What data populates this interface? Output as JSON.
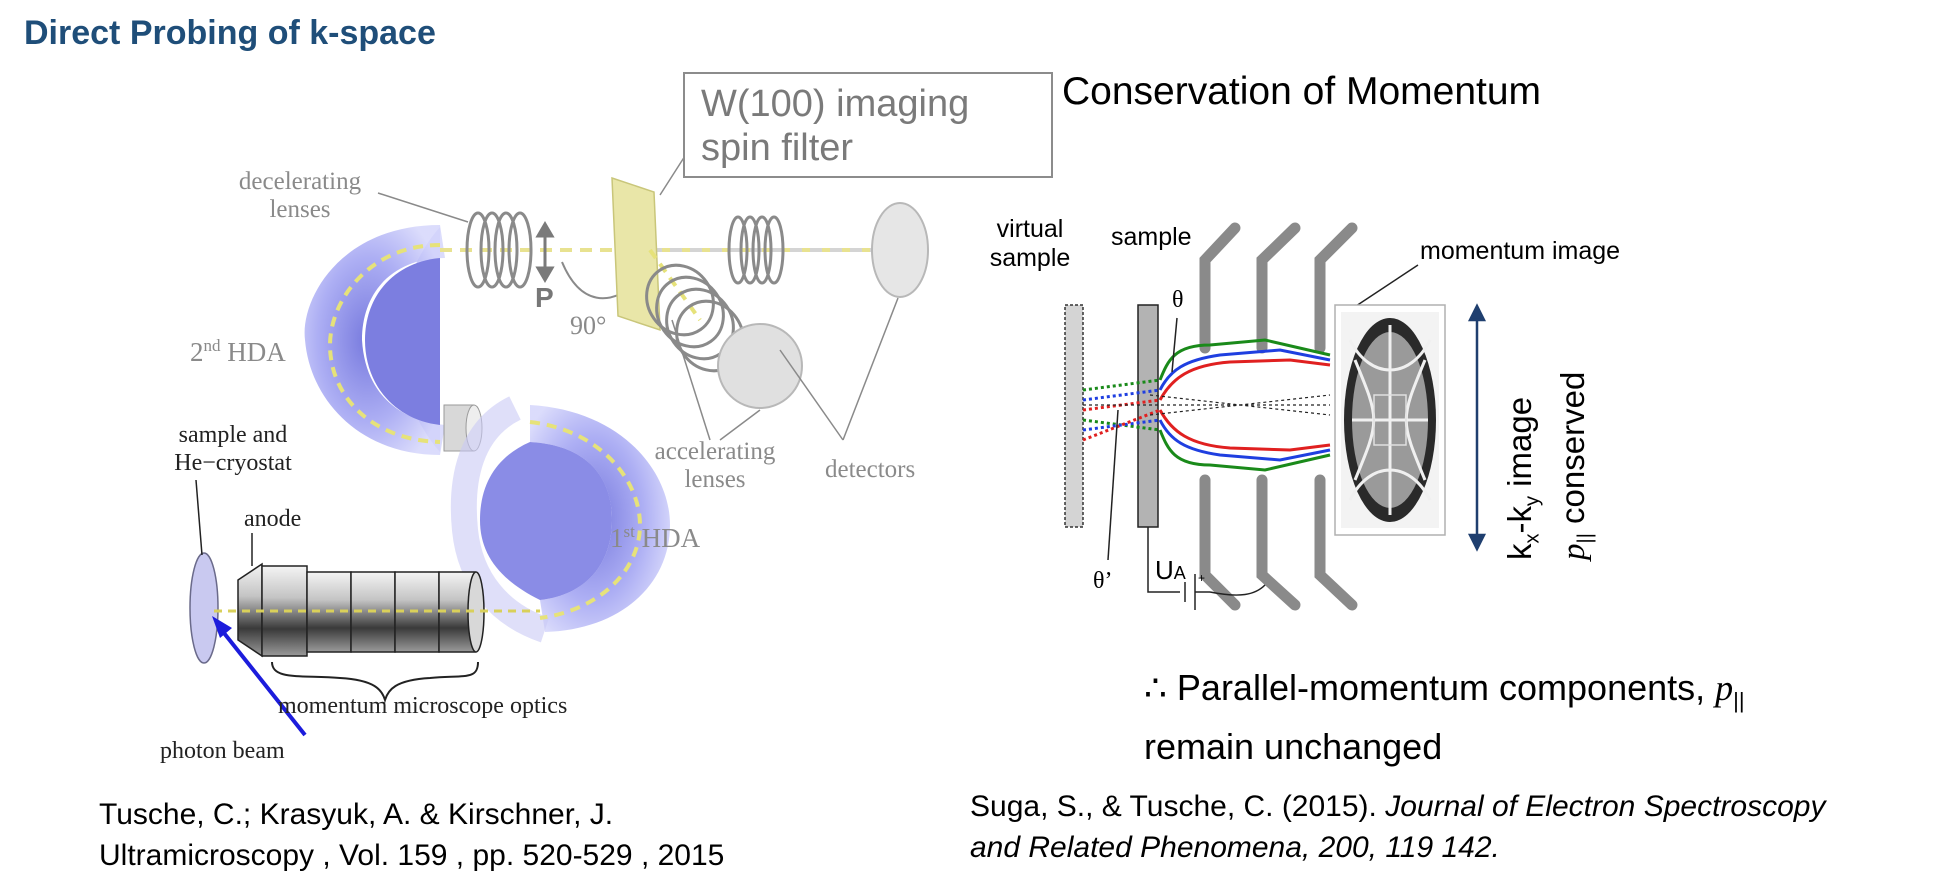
{
  "slide_title": "Direct Probing of k-space",
  "right_heading": "Conservation of Momentum",
  "left_diagram": {
    "filter_box": {
      "line1": "W(100) imaging",
      "line2": "spin filter"
    },
    "decelerating_lenses": [
      "decelerating",
      "lenses"
    ],
    "p_label": "P",
    "angle_label": "90°",
    "hda2": {
      "prefix": "2",
      "sup": "nd",
      "suffix": " HDA"
    },
    "hda1": {
      "prefix": "1",
      "sup": "st",
      "suffix": " HDA"
    },
    "accelerating_lenses": [
      "accelerating",
      "lenses"
    ],
    "detectors": "detectors",
    "sample_cryostat": [
      "sample and",
      "He−cryostat"
    ],
    "anode": "anode",
    "optics": "momentum microscope optics",
    "photon_beam": "photon beam"
  },
  "right_diagram": {
    "virtual_sample": [
      "virtual",
      "sample"
    ],
    "sample": "sample",
    "momentum_image": "momentum image",
    "theta": "θ",
    "theta_prime": "θ’",
    "ua": {
      "main": "U",
      "sub": "A",
      "plus": "+"
    },
    "axis_label": {
      "k": "k",
      "x": "x",
      "dash": "-k",
      "y": "y",
      "image": " image",
      "p": "p",
      "par": "||",
      "conserved": " conserved"
    }
  },
  "conclusion": {
    "therefore": "∴",
    "text1": " Parallel-momentum components, ",
    "p": "p",
    "par": "||",
    "text2": "remain unchanged"
  },
  "references": {
    "left": [
      "Tusche, C.; Krasyuk, A. & Kirschner, J.",
      "Ultramicroscopy , Vol. 159 , pp. 520-529 , 2015"
    ],
    "right_plain": "Suga, S., & Tusche, C. (2015). ",
    "right_italic1": "Journal of Electron Spectroscopy",
    "right_italic2": "and Related Phenomena, 200, 119 142."
  },
  "colors": {
    "title": "#1f4e79",
    "hda": "#9a9cf0",
    "beam_dotted": "#d8d070",
    "green": "#1a8a1a",
    "blue": "#1f3fe0",
    "red": "#e02020",
    "arrow": "#1f3f6f",
    "photon_arrow": "#1c1cdc"
  }
}
